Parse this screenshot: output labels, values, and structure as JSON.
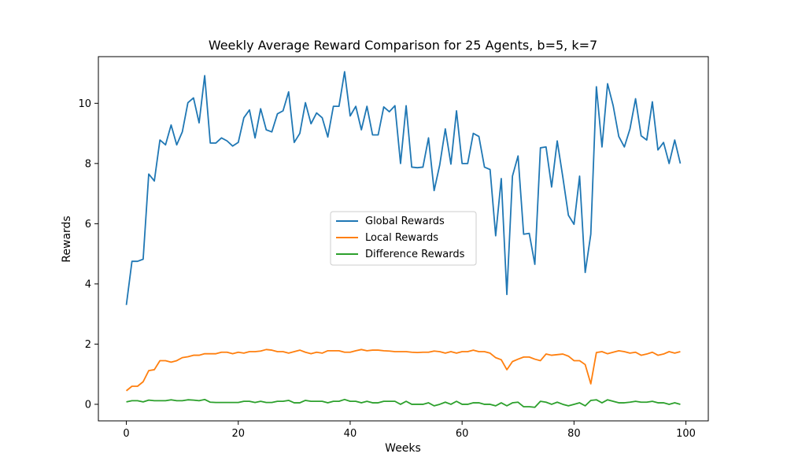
{
  "chart_data": {
    "type": "line",
    "title": "Weekly Average Reward Comparison for 25 Agents, b=5, k=7",
    "xlabel": "Weeks",
    "ylabel": "Rewards",
    "xlim": [
      -5,
      104
    ],
    "ylim": [
      -0.55,
      11.55
    ],
    "xticks": [
      0,
      20,
      40,
      60,
      80,
      100
    ],
    "yticks": [
      0,
      2,
      4,
      6,
      8,
      10
    ],
    "grid": false,
    "legend_position": "center",
    "series": [
      {
        "name": "Global Rewards",
        "color": "#1f77b4",
        "values": [
          3.3,
          4.75,
          4.75,
          4.82,
          7.65,
          7.42,
          8.78,
          8.62,
          9.28,
          8.62,
          9.05,
          10.02,
          10.18,
          9.35,
          10.92,
          8.68,
          8.68,
          8.85,
          8.75,
          8.58,
          8.7,
          9.52,
          9.78,
          8.85,
          9.82,
          9.12,
          9.05,
          9.65,
          9.75,
          10.38,
          8.7,
          9.0,
          10.02,
          9.32,
          9.68,
          9.52,
          8.88,
          9.9,
          9.9,
          11.05,
          9.58,
          9.9,
          9.12,
          9.9,
          8.95,
          8.95,
          9.88,
          9.72,
          9.92,
          8.0,
          9.92,
          7.88,
          7.86,
          7.88,
          8.85,
          7.1,
          7.95,
          9.15,
          7.98,
          9.75,
          8.0,
          8.0,
          9.0,
          8.9,
          7.88,
          7.8,
          5.6,
          7.5,
          3.65,
          7.58,
          8.25,
          5.65,
          5.68,
          4.65,
          8.52,
          8.55,
          7.22,
          8.75,
          7.55,
          6.28,
          5.98,
          7.58,
          4.38,
          5.65,
          10.55,
          8.55,
          10.65,
          9.92,
          8.9,
          8.55,
          9.15,
          10.15,
          8.92,
          8.78,
          10.05,
          8.45,
          8.7,
          8.0,
          8.78,
          8.0
        ]
      },
      {
        "name": "Local Rewards",
        "color": "#ff7f0e",
        "values": [
          0.45,
          0.6,
          0.6,
          0.75,
          1.12,
          1.15,
          1.45,
          1.45,
          1.4,
          1.45,
          1.55,
          1.58,
          1.63,
          1.63,
          1.68,
          1.68,
          1.68,
          1.73,
          1.73,
          1.68,
          1.73,
          1.7,
          1.75,
          1.75,
          1.77,
          1.82,
          1.8,
          1.75,
          1.75,
          1.7,
          1.75,
          1.8,
          1.73,
          1.68,
          1.73,
          1.7,
          1.78,
          1.78,
          1.78,
          1.73,
          1.73,
          1.78,
          1.82,
          1.78,
          1.8,
          1.8,
          1.78,
          1.77,
          1.75,
          1.75,
          1.75,
          1.73,
          1.72,
          1.73,
          1.73,
          1.77,
          1.75,
          1.7,
          1.75,
          1.7,
          1.75,
          1.75,
          1.8,
          1.75,
          1.75,
          1.7,
          1.55,
          1.48,
          1.15,
          1.42,
          1.5,
          1.57,
          1.57,
          1.5,
          1.45,
          1.67,
          1.63,
          1.65,
          1.67,
          1.6,
          1.45,
          1.45,
          1.32,
          0.68,
          1.72,
          1.75,
          1.68,
          1.73,
          1.78,
          1.75,
          1.7,
          1.73,
          1.63,
          1.67,
          1.73,
          1.63,
          1.67,
          1.75,
          1.7,
          1.75
        ]
      },
      {
        "name": "Difference Rewards",
        "color": "#2ca02c",
        "values": [
          0.08,
          0.12,
          0.12,
          0.08,
          0.14,
          0.12,
          0.12,
          0.12,
          0.15,
          0.12,
          0.12,
          0.15,
          0.14,
          0.12,
          0.16,
          0.07,
          0.06,
          0.06,
          0.06,
          0.06,
          0.06,
          0.1,
          0.1,
          0.06,
          0.1,
          0.06,
          0.06,
          0.1,
          0.1,
          0.13,
          0.05,
          0.05,
          0.13,
          0.1,
          0.1,
          0.1,
          0.05,
          0.1,
          0.1,
          0.16,
          0.1,
          0.1,
          0.05,
          0.1,
          0.05,
          0.05,
          0.1,
          0.1,
          0.1,
          0.0,
          0.1,
          0.0,
          0.0,
          0.0,
          0.05,
          -0.05,
          0.0,
          0.07,
          0.0,
          0.1,
          0.0,
          0.0,
          0.05,
          0.05,
          0.0,
          0.0,
          -0.05,
          0.05,
          -0.05,
          0.05,
          0.07,
          -0.08,
          -0.08,
          -0.1,
          0.1,
          0.07,
          0.0,
          0.07,
          0.0,
          -0.05,
          0.0,
          0.05,
          -0.05,
          0.13,
          0.15,
          0.05,
          0.15,
          0.1,
          0.05,
          0.05,
          0.07,
          0.1,
          0.07,
          0.07,
          0.1,
          0.05,
          0.05,
          0.0,
          0.05,
          0.0
        ]
      }
    ]
  }
}
